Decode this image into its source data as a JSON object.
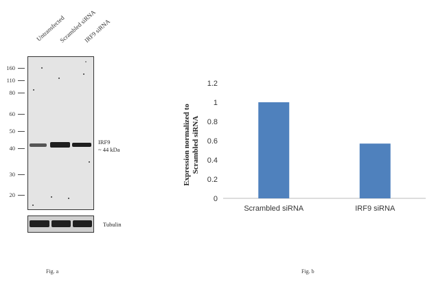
{
  "fig_a": {
    "lanes": [
      "Untransfected",
      "Scrambled siRNA",
      "IRF9 siRNA"
    ],
    "markers": [
      "160",
      "110",
      "80",
      "60",
      "50",
      "40",
      "30",
      "20"
    ],
    "band_label_line1": "IRF9",
    "band_label_line2": "~ 44 kDa",
    "loading_label": "Tubulin",
    "caption": "Fig. a"
  },
  "fig_b": {
    "caption": "Fig. b"
  },
  "chart_data": {
    "type": "bar",
    "categories": [
      "Scrambled siRNA",
      "IRF9 siRNA"
    ],
    "values": [
      1.0,
      0.57
    ],
    "ylabel": "Expression normalized to Scrambled siRNA",
    "ylabel_line1": "Expression  normalized to",
    "ylabel_line2": "Scrambled siRNA",
    "ylim": [
      0,
      1.2
    ],
    "yticks": [
      "0",
      "0.2",
      "0.4",
      "0.6",
      "0.8",
      "1",
      "1.2"
    ],
    "bar_color": "#4f81bd",
    "grid": false
  }
}
